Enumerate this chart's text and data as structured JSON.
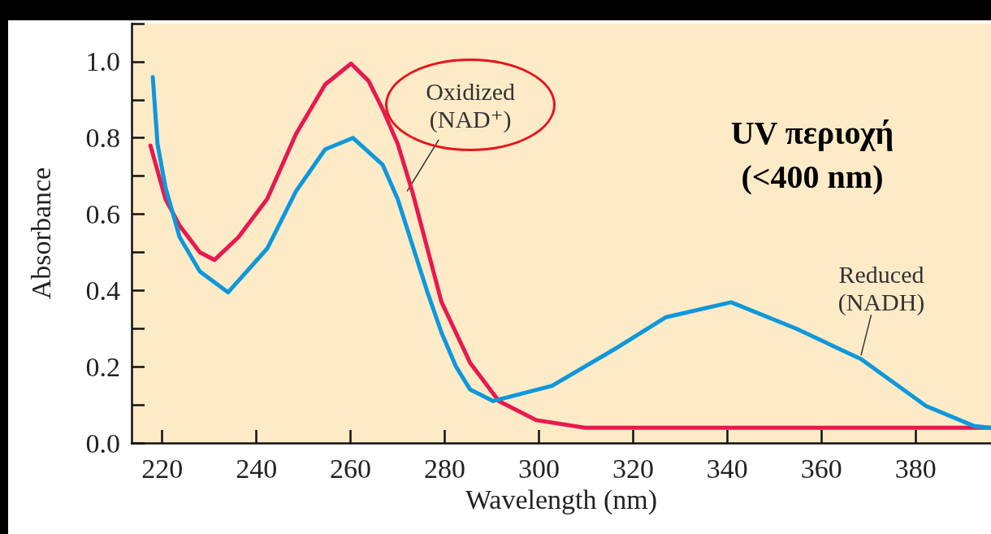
{
  "chart_data": {
    "type": "line",
    "xlabel": "Wavelength (nm)",
    "ylabel": "Absorbance",
    "xlim": [
      213.5,
      396
    ],
    "xticks": [
      220,
      240,
      260,
      280,
      300,
      320,
      340,
      360,
      380
    ],
    "ylim": [
      0,
      1.1
    ],
    "yticks": [
      {
        "value": 0,
        "label": "0.0"
      },
      {
        "value": 0.1,
        "label": null
      },
      {
        "value": 0.2,
        "label": "0.2"
      },
      {
        "value": 0.3,
        "label": null
      },
      {
        "value": 0.4,
        "label": "0.4"
      },
      {
        "value": 0.5,
        "label": null
      },
      {
        "value": 0.6,
        "label": "0.6"
      },
      {
        "value": 0.7,
        "label": null
      },
      {
        "value": 0.8,
        "label": "0.8"
      },
      {
        "value": 0.9,
        "label": null
      },
      {
        "value": 1,
        "label": "1.0"
      },
      {
        "value": 1.1,
        "label": null
      }
    ],
    "grid": false,
    "marker": "none",
    "line_style": "solid",
    "series": [
      {
        "color": "#e8194f",
        "x": [
          217.5,
          220.7,
          223.7,
          228,
          231.1,
          236.2,
          242.3,
          248.4,
          254.6,
          260.1,
          263.8,
          266.8,
          270,
          273.1,
          279.3,
          285.4,
          291.5,
          299.4,
          309.8,
          330,
          360,
          396
        ],
        "values": [
          0.78,
          0.64,
          0.57,
          0.5,
          0.48,
          0.54,
          0.64,
          0.81,
          0.94,
          0.995,
          0.95,
          0.876,
          0.785,
          0.66,
          0.37,
          0.21,
          0.11,
          0.06,
          0.04,
          0.04,
          0.04,
          0.04
        ]
      },
      {
        "color": "#0e97dc",
        "x": [
          218,
          219,
          220.7,
          223.7,
          228,
          234,
          242.3,
          248.4,
          254.6,
          260.5,
          266.8,
          270,
          273.1,
          276.2,
          279.3,
          282.4,
          285.4,
          290.3,
          302.8,
          316.6,
          327,
          340.8,
          354.6,
          368.4,
          382.2,
          392.5,
          396
        ],
        "values": [
          0.96,
          0.785,
          0.67,
          0.54,
          0.45,
          0.395,
          0.51,
          0.66,
          0.77,
          0.8,
          0.73,
          0.64,
          0.52,
          0.4,
          0.29,
          0.2,
          0.14,
          0.11,
          0.15,
          0.25,
          0.33,
          0.369,
          0.3,
          0.22,
          0.097,
          0.044,
          0.04
        ]
      }
    ],
    "annotations": [
      {
        "text": "Oxidized\n(NAD⁺)",
        "x": 272,
        "y": 0.66
      },
      {
        "text": "Reduced\n(NADH)",
        "x": 368.4,
        "y": 0.23
      },
      "UV περιοχή\n(<400 nm)"
    ]
  }
}
